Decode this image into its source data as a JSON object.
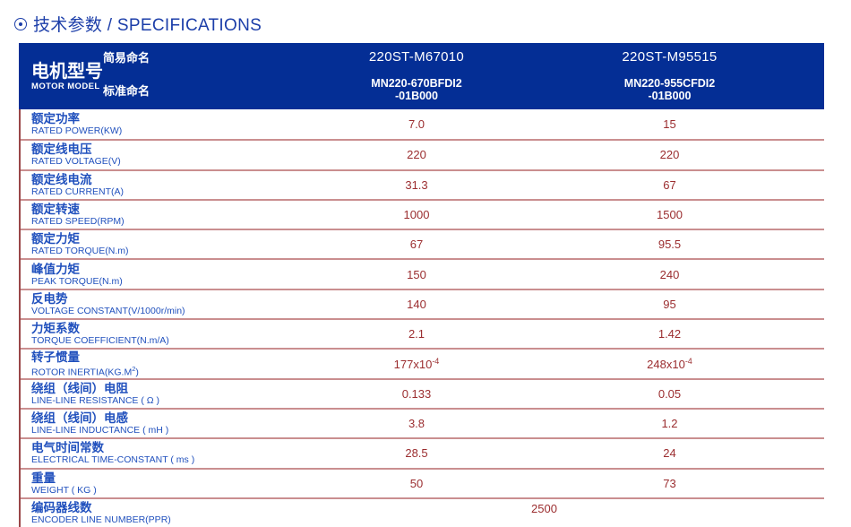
{
  "page_title": {
    "text": "技术参数 / SPECIFICATIONS"
  },
  "colors": {
    "header_bg": "#042e95",
    "title_blue": "#1c3ea9",
    "label_blue": "#2050bd",
    "value_red": "#9b2d2f",
    "separator_red": "#9a4648"
  },
  "table": {
    "header": {
      "motor_model_zh": "电机型号",
      "motor_model_en": "MOTOR MODEL",
      "simple_name_label": "简易命名",
      "standard_name_label": "标准命名",
      "columns": [
        {
          "simple_name": "220ST-M67010",
          "standard_name_line1": "MN220-670BFDI2",
          "standard_name_line2": "-01B000"
        },
        {
          "simple_name": "220ST-M95515",
          "standard_name_line1": "MN220-955CFDI2",
          "standard_name_line2": "-01B000"
        }
      ]
    },
    "rows": [
      {
        "zh": "额定功率",
        "en": "RATED POWER(KW)",
        "values": [
          "7.0",
          "15"
        ]
      },
      {
        "zh": "额定线电压",
        "en": "RATED VOLTAGE(V)",
        "values": [
          "220",
          "220"
        ]
      },
      {
        "zh": "额定线电流",
        "en": "RATED CURRENT(A)",
        "values": [
          "31.3",
          "67"
        ]
      },
      {
        "zh": "额定转速",
        "en": "RATED SPEED(RPM)",
        "values": [
          "1000",
          "1500"
        ]
      },
      {
        "zh": "额定力矩",
        "en": "RATED TORQUE(N.m)",
        "values": [
          "67",
          "95.5"
        ]
      },
      {
        "zh": "峰值力矩",
        "en": "PEAK TORQUE(N.m)",
        "values": [
          "150",
          "240"
        ]
      },
      {
        "zh": "反电势",
        "en": "VOLTAGE CONSTANT(V/1000r/min)",
        "values": [
          "140",
          "95"
        ]
      },
      {
        "zh": "力矩系数",
        "en": "TORQUE COEFFICIENT(N.m/A)",
        "values": [
          "2.1",
          "1.42"
        ]
      },
      {
        "zh": "转子惯量",
        "en": "ROTOR INERTIA(KG.M",
        "en_sup": "2",
        "en_tail": ")",
        "values": [
          {
            "t": "177x10",
            "sup": "-4"
          },
          {
            "t": "248x10 ",
            "sup": "-4"
          }
        ]
      },
      {
        "zh": "绕组（线间）电阻",
        "en": "LINE-LINE RESISTANCE ( Ω )",
        "values": [
          "0.133",
          "0.05"
        ]
      },
      {
        "zh": "绕组（线间）电感",
        "en": "LINE-LINE INDUCTANCE ( mH )",
        "values": [
          "3.8",
          "1.2"
        ]
      },
      {
        "zh": "电气时间常数",
        "en": "ELECTRICAL TIME-CONSTANT ( ms )",
        "values": [
          "28.5",
          "24"
        ]
      },
      {
        "zh": "重量",
        "en": "WEIGHT ( KG )",
        "values": [
          "50",
          "73"
        ]
      },
      {
        "zh": "编码器线数",
        "en": "ENCODER LINE NUMBER(PPR)",
        "values": [
          "2500"
        ],
        "merged": true
      }
    ]
  }
}
